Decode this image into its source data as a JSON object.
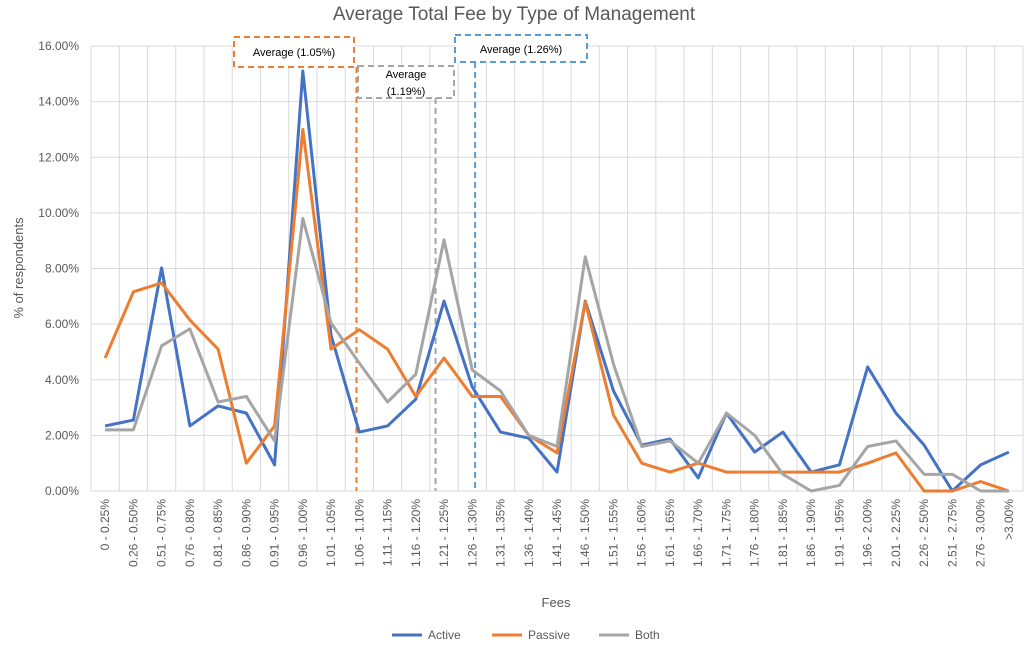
{
  "chart_data": {
    "type": "line",
    "title": "Average Total Fee by Type of Management",
    "xlabel": "Fees",
    "ylabel": "% of respondents",
    "ylim": [
      0,
      16
    ],
    "yticks": [
      "0.00%",
      "2.00%",
      "4.00%",
      "6.00%",
      "8.00%",
      "10.00%",
      "12.00%",
      "14.00%",
      "16.00%"
    ],
    "grid": true,
    "legend_position": "bottom",
    "categories": [
      "0 - 0.25%",
      "0.26 - 0.50%",
      "0.51 - 0.75%",
      "0.76 - 0.80%",
      "0.81 - 0.85%",
      "0.86 - 0.90%",
      "0.91 - 0.95%",
      "0.96 - 1.00%",
      "1.01 - 1.05%",
      "1.06 - 1.10%",
      "1.11 - 1.15%",
      "1.16 - 1.20%",
      "1.21 - 1.25%",
      "1.26 - 1.30%",
      "1.31 - 1.35%",
      "1.36 - 1.40%",
      "1.41 - 1.45%",
      "1.46 - 1.50%",
      "1.51 - 1.55%",
      "1.56 - 1.60%",
      "1.61 - 1.65%",
      "1.66 - 1.70%",
      "1.71 - 1.75%",
      "1.76 - 1.80%",
      "1.81 - 1.85%",
      "1.86 - 1.90%",
      "1.91 - 1.95%",
      "1.96 - 2.00%",
      "2.01 - 2.25%",
      "2.26 - 2.50%",
      "2.51 - 2.75%",
      "2.76 - 3.00%",
      ">3.00%"
    ],
    "series": [
      {
        "name": "Active",
        "color": "#4472C4",
        "values": [
          2.34,
          2.55,
          8.02,
          2.34,
          3.06,
          2.8,
          0.94,
          15.1,
          5.6,
          2.12,
          2.34,
          3.3,
          6.83,
          3.74,
          2.12,
          1.9,
          0.68,
          6.83,
          3.6,
          1.65,
          1.87,
          0.47,
          2.8,
          1.4,
          2.12,
          0.68,
          0.94,
          4.46,
          2.8,
          1.65,
          0,
          0.94,
          1.4
        ]
      },
      {
        "name": "Passive",
        "color": "#ED7D31",
        "values": [
          4.78,
          7.16,
          7.48,
          6.15,
          5.1,
          1.0,
          2.34,
          13.0,
          5.1,
          5.8,
          5.1,
          3.4,
          4.78,
          3.4,
          3.4,
          2.0,
          1.37,
          6.8,
          2.73,
          1.0,
          0.68,
          1.0,
          0.68,
          0.68,
          0.68,
          0.68,
          0.68,
          1.0,
          1.37,
          0,
          0,
          0.34,
          0
        ]
      },
      {
        "name": "Both",
        "color": "#A5A5A5",
        "values": [
          2.2,
          2.2,
          5.22,
          5.83,
          3.2,
          3.4,
          1.8,
          9.8,
          6.04,
          4.6,
          3.2,
          4.2,
          9.03,
          4.35,
          3.6,
          2.0,
          1.6,
          8.42,
          4.56,
          1.6,
          1.8,
          1.0,
          2.8,
          2.0,
          0.6,
          0,
          0.2,
          1.6,
          1.8,
          0.6,
          0.6,
          0,
          0
        ]
      }
    ],
    "annotations": [
      {
        "label": "Average (1.05%)",
        "value": 1.05,
        "color": "#ED7D31"
      },
      {
        "label": "Average (1.19%)",
        "value": 1.19,
        "color": "#A5A5A5"
      },
      {
        "label": "Average (1.26%)",
        "value": 1.26,
        "color": "#5B9BD5"
      }
    ]
  }
}
